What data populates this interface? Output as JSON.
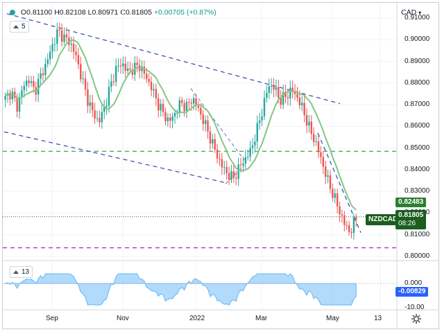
{
  "legend": {
    "open": "O0.81100",
    "high": "H0.82108",
    "low": "L0.80971",
    "close": "C0.81805",
    "change": "+0.00705 (+0.87%)"
  },
  "ma_indicator": {
    "period": "5"
  },
  "osc_indicator": {
    "period": "13"
  },
  "currency": "CAD",
  "price_axis": {
    "ticks": [
      "0.91000",
      "0.90000",
      "0.89000",
      "0.88000",
      "0.87000",
      "0.86000",
      "0.85000",
      "0.84000",
      "0.83000",
      "0.82000",
      "0.81000",
      "0.80000"
    ]
  },
  "osc_axis": {
    "ticks": [
      "0.000",
      "-10.00"
    ]
  },
  "time_axis": {
    "ticks": [
      "Sep",
      "Nov",
      "2022",
      "Mar",
      "May",
      "13"
    ]
  },
  "tags": {
    "ma_value": "0.82483",
    "symbol": "NZDCAD",
    "last_price": "0.81805",
    "countdown": "08:26",
    "osc_value": "-0.00829"
  },
  "icons": {
    "settings": "gear-icon",
    "collapse": "chevron-up-icon"
  },
  "colors": {
    "bull": "#26a69a",
    "bear": "#ef5350",
    "ma": "#81c784",
    "channel": "#3f51b5",
    "support": "#4caf50",
    "low_line": "#9c27b0",
    "osc_fill": "#90caf9",
    "last_tag": "#1b5e20",
    "osc_tag": "#2962ff"
  },
  "chart_data": {
    "type": "candlestick",
    "symbol": "NZDCAD",
    "ylim": [
      0.8,
      0.91
    ],
    "x_labels": [
      "Sep",
      "Nov",
      "2022",
      "Mar",
      "May",
      "13"
    ],
    "close_path": [
      0.873,
      0.876,
      0.869,
      0.878,
      0.882,
      0.876,
      0.883,
      0.889,
      0.897,
      0.904,
      0.901,
      0.899,
      0.893,
      0.883,
      0.873,
      0.866,
      0.862,
      0.869,
      0.879,
      0.887,
      0.889,
      0.885,
      0.887,
      0.888,
      0.883,
      0.878,
      0.871,
      0.866,
      0.862,
      0.866,
      0.871,
      0.869,
      0.873,
      0.868,
      0.862,
      0.855,
      0.848,
      0.842,
      0.838,
      0.836,
      0.841,
      0.845,
      0.849,
      0.858,
      0.868,
      0.879,
      0.878,
      0.872,
      0.874,
      0.877,
      0.873,
      0.867,
      0.859,
      0.853,
      0.845,
      0.836,
      0.829,
      0.822,
      0.815,
      0.811,
      0.818
    ],
    "moving_average": {
      "period": 5,
      "last_value": 0.82483
    },
    "last_close": 0.81805,
    "horizontal_levels": [
      0.8485,
      0.804,
      0.8183
    ],
    "oscillator": {
      "period": 13,
      "last_value": -0.00829,
      "ticks": [
        0.0,
        -10.0
      ]
    }
  }
}
